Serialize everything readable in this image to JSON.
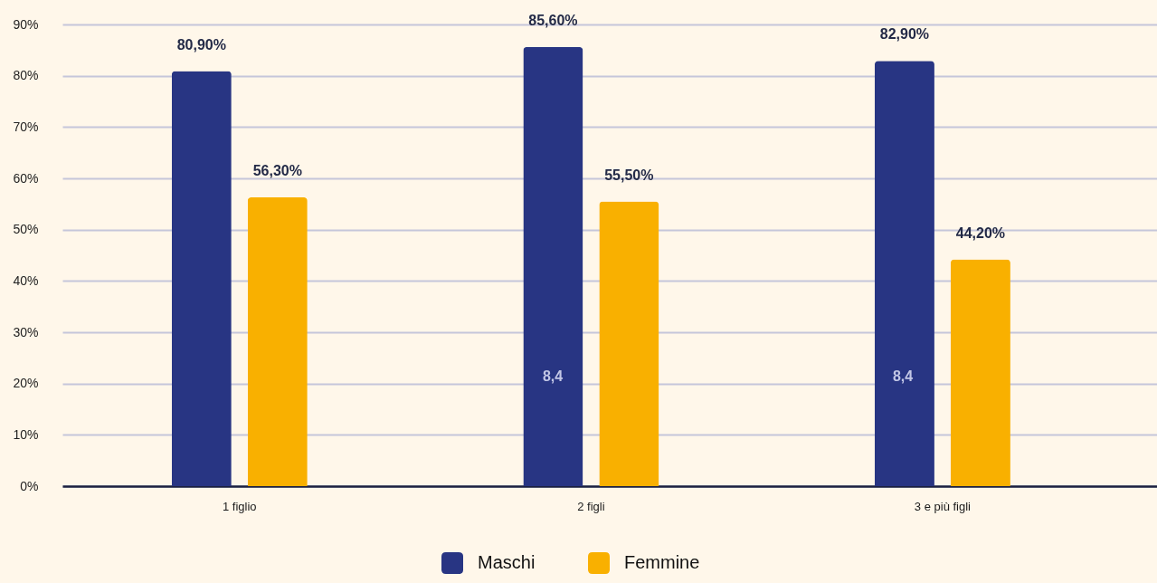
{
  "chart_data": {
    "type": "bar",
    "categories": [
      "1 figlio",
      "2 figli",
      "3 e più figli"
    ],
    "series": [
      {
        "name": "Maschi",
        "color": "#283583",
        "values": [
          80.9,
          85.6,
          82.9
        ],
        "value_labels": [
          "80,90%",
          "85,60%",
          "82,90%"
        ]
      },
      {
        "name": "Femmine",
        "color": "#f9b000",
        "values": [
          56.3,
          55.5,
          44.2
        ],
        "value_labels": [
          "56,30%",
          "55,50%",
          "44,20%"
        ]
      }
    ],
    "ylim": [
      0,
      90
    ],
    "yticks": [
      {
        "value": 0,
        "label": "0%"
      },
      {
        "value": 10,
        "label": "10%"
      },
      {
        "value": 20,
        "label": "20%"
      },
      {
        "value": 30,
        "label": "30%"
      },
      {
        "value": 40,
        "label": "40%"
      },
      {
        "value": 50,
        "label": "50%"
      },
      {
        "value": 60,
        "label": "60%"
      },
      {
        "value": 70,
        "label": "70%"
      },
      {
        "value": 80,
        "label": "80%"
      },
      {
        "value": 90,
        "label": "90%"
      }
    ],
    "grid": "y",
    "legend": "bottom",
    "annotations": [
      "8,4",
      "8,4"
    ]
  }
}
